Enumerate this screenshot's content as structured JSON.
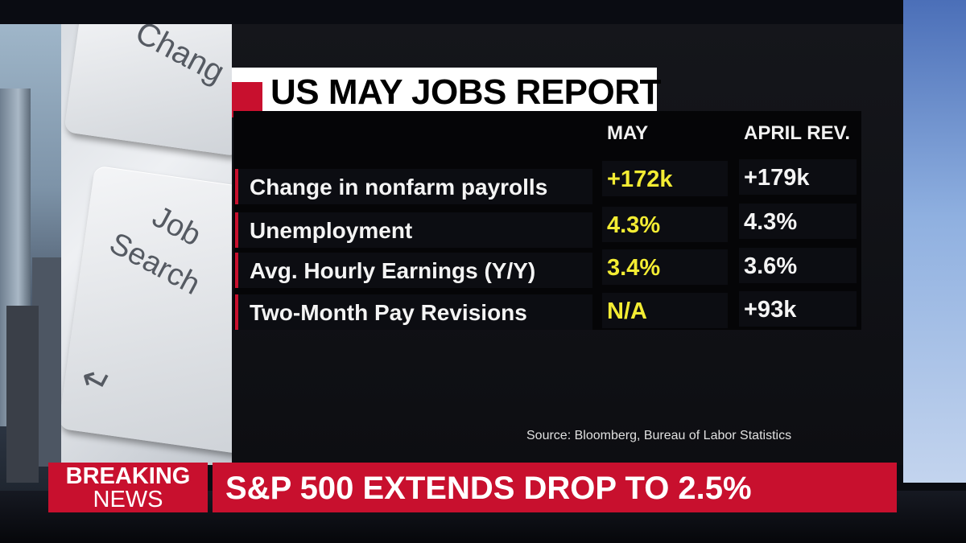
{
  "report": {
    "title": "US MAY JOBS REPORT",
    "columns": [
      "MAY",
      "APRIL REV."
    ],
    "rows": [
      {
        "label": "Change in nonfarm payrolls",
        "may": "+172k",
        "april": "+179k"
      },
      {
        "label": "Unemployment",
        "may": "4.3%",
        "april": "4.3%"
      },
      {
        "label": "Avg. Hourly Earnings (Y/Y)",
        "may": "3.4%",
        "april": "3.6%"
      },
      {
        "label": "Two-Month Pay Revisions",
        "may": "N/A",
        "april": "+93k"
      }
    ],
    "source": "Source: Bloomberg, Bureau of Labor Statistics"
  },
  "photo": {
    "key_top": "Chang",
    "key_job_line1": "Job",
    "key_job_line2": "Search",
    "key_arrow": "↵"
  },
  "ticker": {
    "breaking_line1": "BREAKING",
    "breaking_line2": "NEWS",
    "headline": "S&P 500 EXTENDS DROP TO 2.5%"
  },
  "colors": {
    "accent_red": "#c8102e",
    "may_yellow": "#f3ec33"
  }
}
